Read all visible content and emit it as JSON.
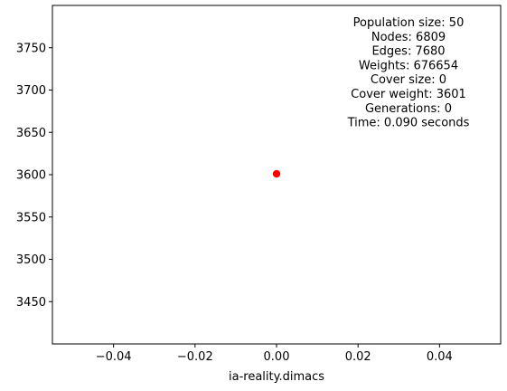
{
  "chart_data": {
    "type": "scatter",
    "title": "",
    "xlabel": "ia-reality.dimacs",
    "ylabel": "",
    "xlim": [
      -0.055,
      0.055
    ],
    "ylim": [
      3400,
      3800
    ],
    "xticks": [
      -0.04,
      -0.02,
      0.0,
      0.02,
      0.04
    ],
    "xtick_labels": [
      "−0.04",
      "−0.02",
      "0.00",
      "0.02",
      "0.04"
    ],
    "yticks": [
      3450,
      3500,
      3550,
      3600,
      3650,
      3700,
      3750
    ],
    "ytick_labels": [
      "3450",
      "3500",
      "3550",
      "3600",
      "3650",
      "3700",
      "3750"
    ],
    "grid": false,
    "points": [
      {
        "x": 0.0,
        "y": 3601
      }
    ],
    "point_color": "#ff0000",
    "annotation": [
      "Population size: 50",
      "Nodes: 6809",
      "Edges: 7680",
      "Weights: 676654",
      "Cover size: 0",
      "Cover weight: 3601",
      "Generations: 0",
      "Time: 0.090 seconds"
    ]
  }
}
